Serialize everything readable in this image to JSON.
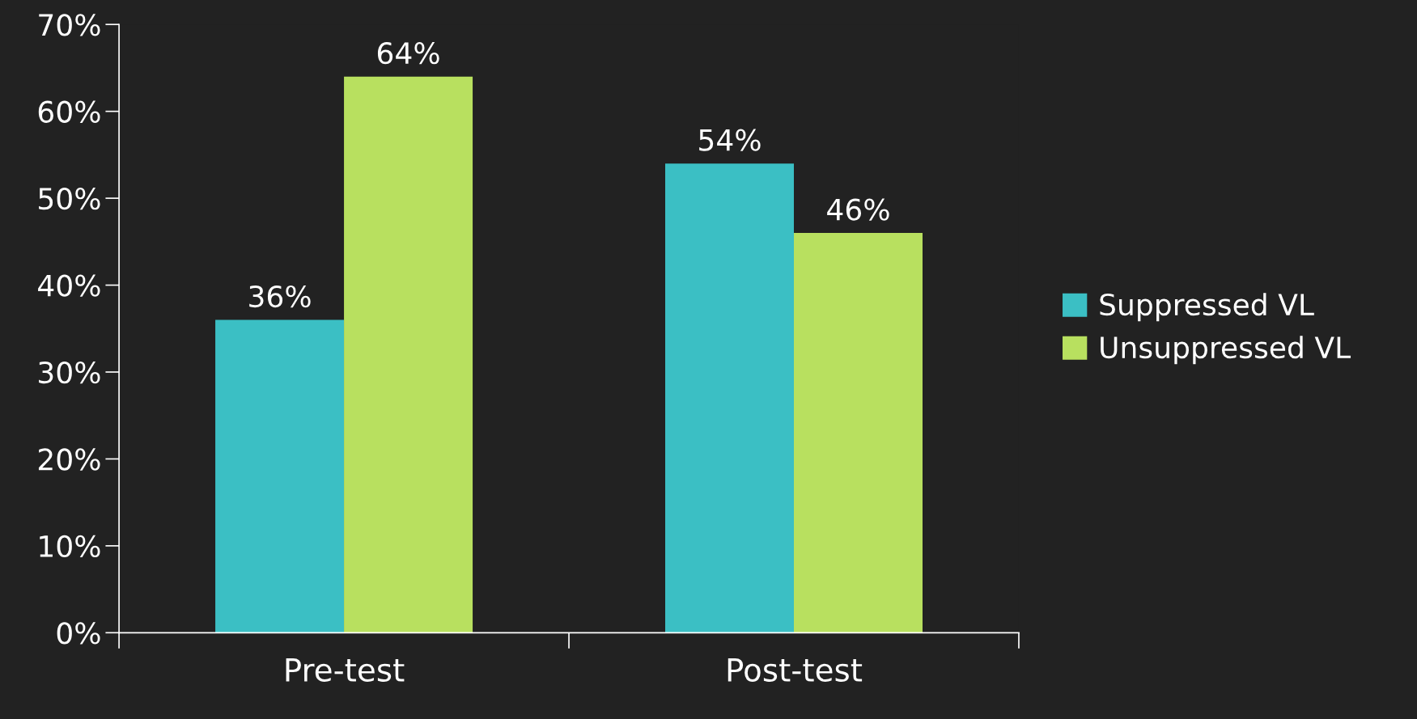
{
  "chart_data": {
    "type": "bar",
    "categories": [
      "Pre-test",
      "Post-test"
    ],
    "series": [
      {
        "name": "Suppressed VL",
        "color": "#3bbfc4",
        "values": [
          36,
          54
        ],
        "value_labels": [
          "36%",
          "54%"
        ]
      },
      {
        "name": "Unsuppressed VL",
        "color": "#b8e05f",
        "values": [
          64,
          46
        ],
        "value_labels": [
          "64%",
          "46%"
        ]
      }
    ],
    "ylim": [
      0,
      70
    ],
    "yticks": [
      {
        "value": 0,
        "label": "0%"
      },
      {
        "value": 10,
        "label": "10%"
      },
      {
        "value": 20,
        "label": "20%"
      },
      {
        "value": 30,
        "label": "30%"
      },
      {
        "value": 40,
        "label": "40%"
      },
      {
        "value": 50,
        "label": "50%"
      },
      {
        "value": 60,
        "label": "60%"
      },
      {
        "value": 70,
        "label": "70%"
      }
    ],
    "grid": false,
    "legend": "right"
  }
}
